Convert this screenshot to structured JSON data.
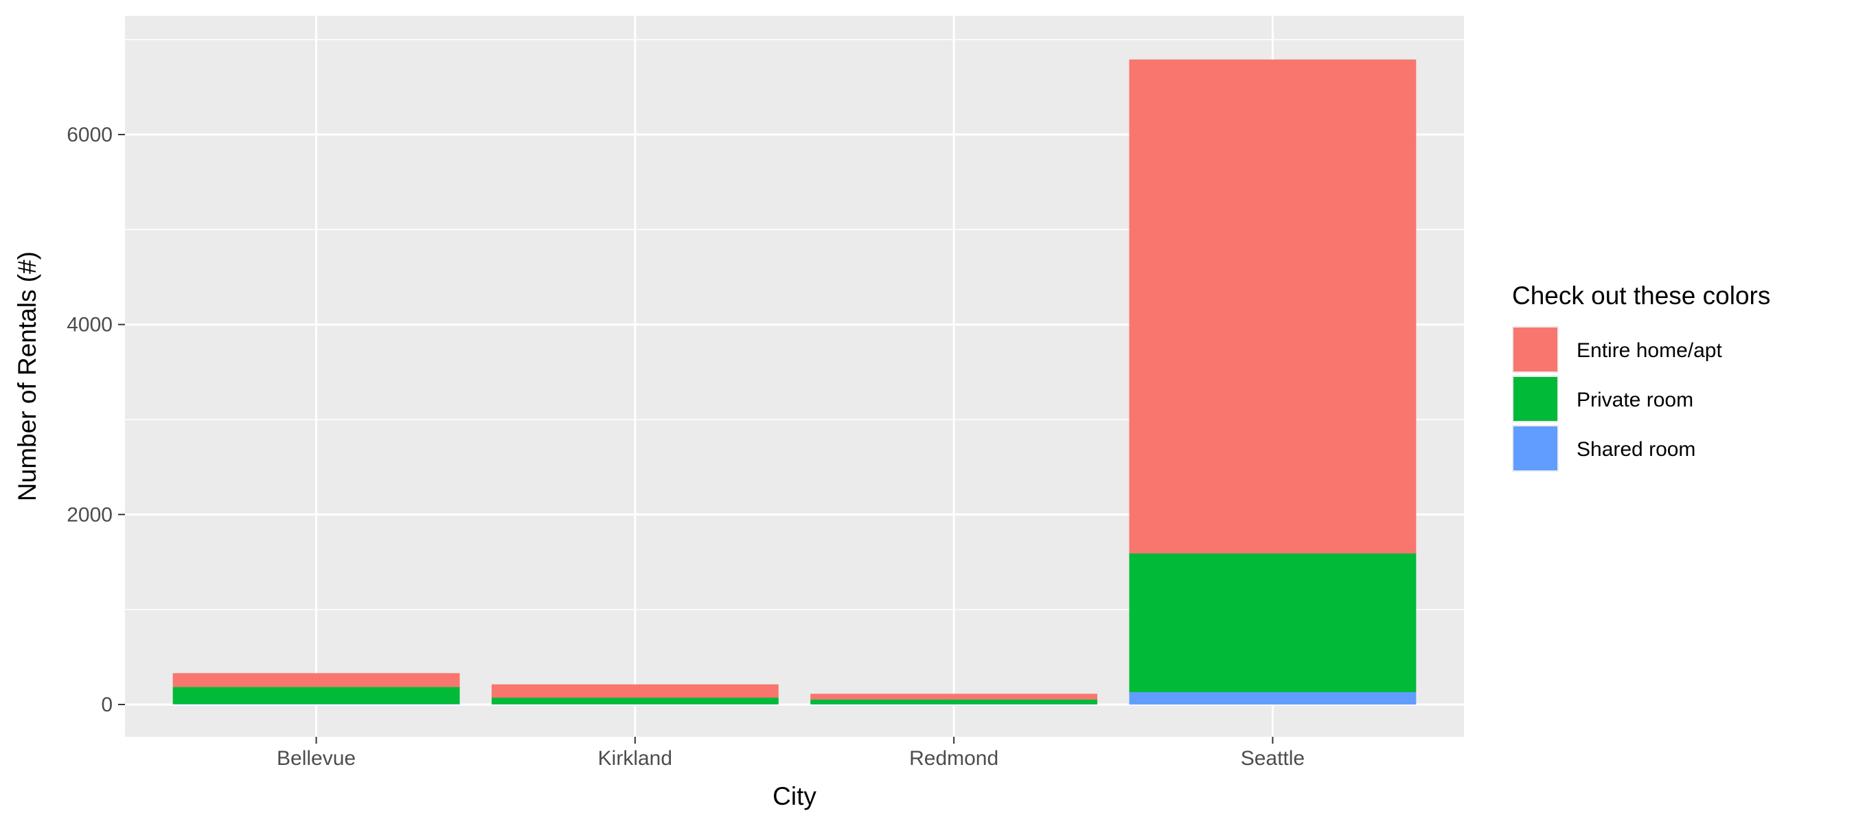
{
  "chart_data": {
    "type": "bar",
    "stacked": true,
    "xlabel": "City",
    "ylabel": "Number of Rentals (#)",
    "categories": [
      "Bellevue",
      "Kirkland",
      "Redmond",
      "Seattle"
    ],
    "ylim": [
      -340,
      7250
    ],
    "yticks": [
      0,
      2000,
      4000,
      6000
    ],
    "yticks_minor": [
      1000,
      3000,
      5000,
      7000
    ],
    "grid": true,
    "legend": {
      "title": "Check out these colors",
      "position": "right"
    },
    "series": [
      {
        "name": "Shared room",
        "color": "#619CFF",
        "values": [
          5,
          2,
          3,
          130
        ]
      },
      {
        "name": "Private room",
        "color": "#00BA38",
        "values": [
          180,
          70,
          50,
          1460
        ]
      },
      {
        "name": "Entire home/apt",
        "color": "#F8766D",
        "values": [
          145,
          140,
          60,
          5200
        ]
      }
    ],
    "colors": {
      "panel_background": "#EBEBEB",
      "grid": "#FFFFFF"
    }
  }
}
